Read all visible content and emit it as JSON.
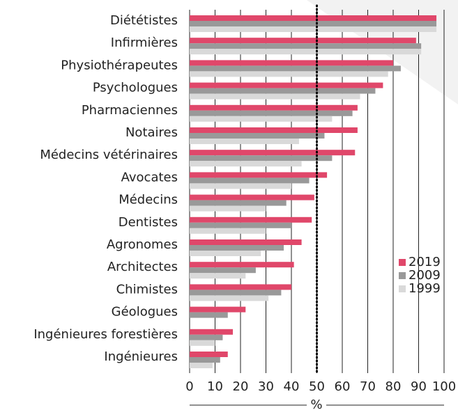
{
  "chart_data": {
    "type": "hbar",
    "categories": [
      "Diététistes",
      "Infirmières",
      "Physiothérapeutes",
      "Psychologues",
      "Pharmaciennes",
      "Notaires",
      "Médecins vétérinaires",
      "Avocates",
      "Médecins",
      "Dentistes",
      "Agronomes",
      "Architectes",
      "Chimistes",
      "Géologues",
      "Ingénieures forestières",
      "Ingénieures"
    ],
    "series": [
      {
        "name": "2019",
        "color": "#e0476a",
        "values": [
          97,
          89,
          80,
          76,
          66,
          66,
          65,
          54,
          49,
          48,
          44,
          41,
          40,
          22,
          17,
          15
        ]
      },
      {
        "name": "2009",
        "color": "#999999",
        "values": [
          97,
          91,
          83,
          73,
          64,
          53,
          56,
          47,
          38,
          40,
          37,
          26,
          36,
          15,
          13,
          12
        ]
      },
      {
        "name": "1999",
        "color": "#d9d9d9",
        "values": [
          97,
          91,
          78,
          67,
          56,
          43,
          44,
          40,
          30,
          30,
          28,
          22,
          31,
          null,
          10,
          9
        ]
      }
    ],
    "xlabel": "%",
    "xlim": [
      0,
      100
    ],
    "xticks": [
      0,
      10,
      20,
      30,
      40,
      50,
      60,
      70,
      80,
      90,
      100
    ],
    "grid": true,
    "reference_line": 50,
    "legend": "lower right"
  }
}
